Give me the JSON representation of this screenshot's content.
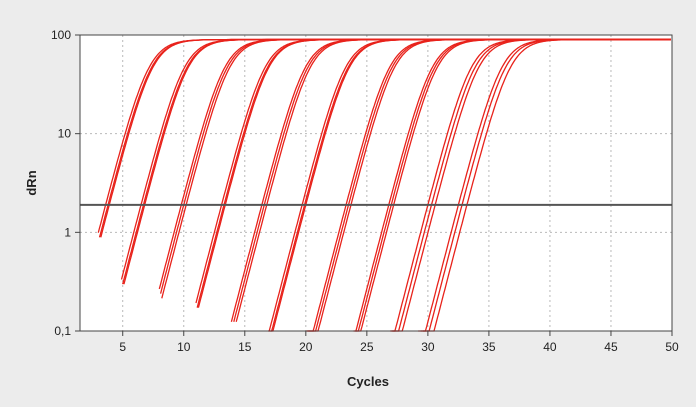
{
  "chart_data": {
    "type": "line",
    "xlabel": "Cycles",
    "ylabel": "dRn",
    "x_ticks": [
      5,
      10,
      15,
      20,
      25,
      30,
      35,
      40,
      45,
      50
    ],
    "xlim": [
      1.5,
      50
    ],
    "y_scale": "log",
    "y_ticks": [
      0.1,
      1,
      10,
      100
    ],
    "y_tick_labels": [
      "0,1",
      "1",
      "10",
      "100"
    ],
    "ylim": [
      0.1,
      100
    ],
    "grid": true,
    "threshold": 1.9,
    "plateau": 90,
    "series_color": "#e8221b",
    "threshold_color": "#555555",
    "series": [
      {
        "start": 3.0,
        "ct": 3.6
      },
      {
        "start": 3.1,
        "ct": 3.8
      },
      {
        "start": 3.2,
        "ct": 3.9
      },
      {
        "start": 4.9,
        "ct": 6.5
      },
      {
        "start": 5.0,
        "ct": 6.7
      },
      {
        "start": 5.1,
        "ct": 6.8
      },
      {
        "start": 8.0,
        "ct": 9.8
      },
      {
        "start": 8.1,
        "ct": 10.0
      },
      {
        "start": 8.2,
        "ct": 10.2
      },
      {
        "start": 11.0,
        "ct": 13.1
      },
      {
        "start": 11.1,
        "ct": 13.3
      },
      {
        "start": 11.2,
        "ct": 13.4
      },
      {
        "start": 13.9,
        "ct": 16.4
      },
      {
        "start": 14.1,
        "ct": 16.6
      },
      {
        "start": 14.3,
        "ct": 16.8
      },
      {
        "start": 16.9,
        "ct": 19.7
      },
      {
        "start": 17.0,
        "ct": 19.9
      },
      {
        "start": 17.1,
        "ct": 20.0
      },
      {
        "start": 20.0,
        "ct": 23.3
      },
      {
        "start": 20.1,
        "ct": 23.5
      },
      {
        "start": 20.2,
        "ct": 23.7
      },
      {
        "start": 23.9,
        "ct": 26.8
      },
      {
        "start": 24.0,
        "ct": 27.0
      },
      {
        "start": 24.1,
        "ct": 27.2
      },
      {
        "start": 26.9,
        "ct": 30.0
      },
      {
        "start": 27.0,
        "ct": 30.3
      },
      {
        "start": 27.1,
        "ct": 30.6
      },
      {
        "start": 29.2,
        "ct": 32.5
      },
      {
        "start": 29.4,
        "ct": 32.8
      },
      {
        "start": 29.6,
        "ct": 33.2
      }
    ]
  }
}
